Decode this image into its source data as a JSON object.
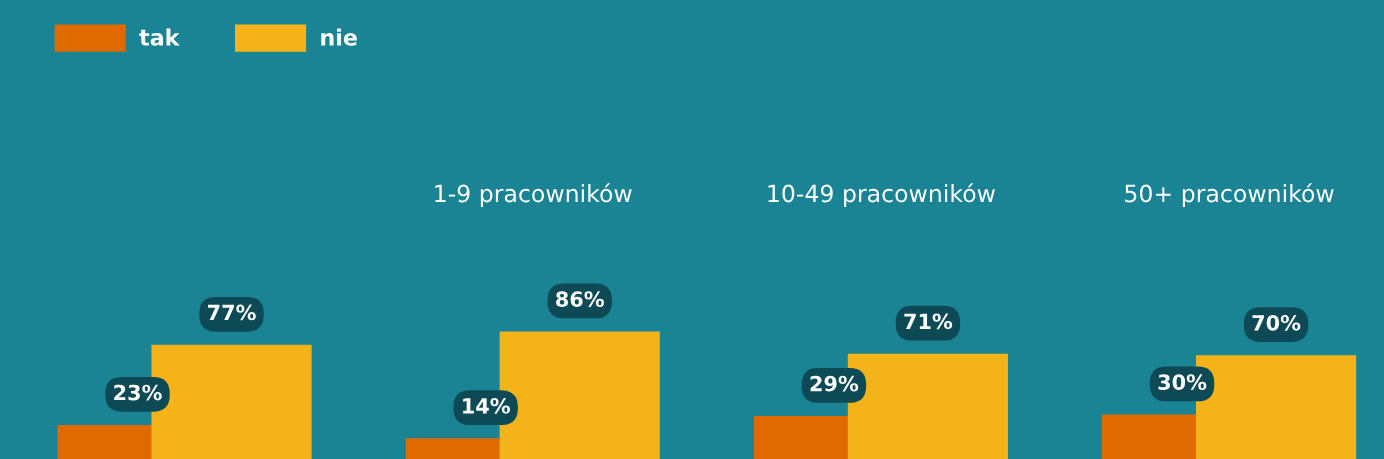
{
  "chart_data": {
    "type": "bar",
    "categories": [
      null,
      "1-9 pracowników",
      "10-49 pracowników",
      "50+ pracowników"
    ],
    "series": [
      {
        "name": "tak",
        "color": "#e06a00",
        "values": [
          23,
          14,
          29,
          30
        ],
        "value_labels": [
          "23%",
          "14%",
          "29%",
          "30%"
        ]
      },
      {
        "name": "nie",
        "color": "#f5b31a",
        "values": [
          77,
          86,
          71,
          70
        ],
        "value_labels": [
          "77%",
          "86%",
          "71%",
          "70%"
        ]
      }
    ],
    "legend": "top left"
  }
}
